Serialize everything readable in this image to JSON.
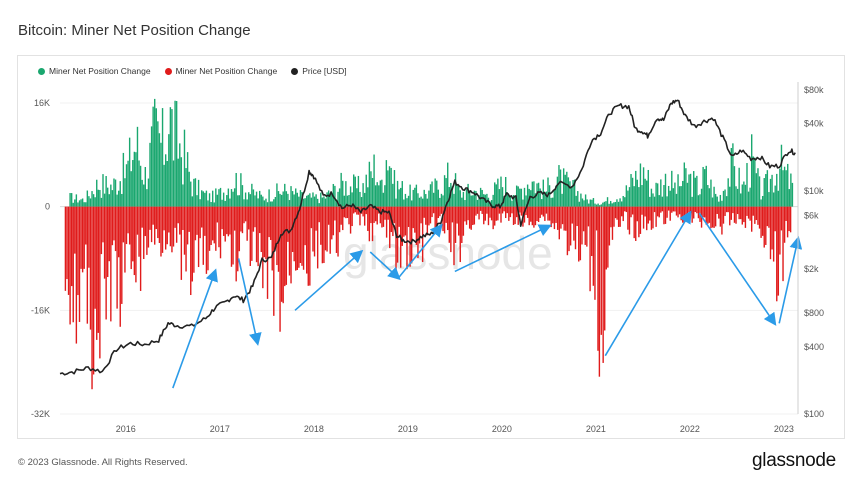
{
  "title": "Bitcoin: Miner Net Position Change",
  "footer": "© 2023 Glassnode. All Rights Reserved.",
  "brand": "glassnode",
  "watermark": "glassnode",
  "legend": [
    {
      "label": "Miner Net Position Change",
      "color": "#1aa76f"
    },
    {
      "label": "Miner Net Position Change",
      "color": "#e01b1b"
    },
    {
      "label": "Price [USD]",
      "color": "#222222"
    }
  ],
  "chart_data": {
    "type": "bar",
    "title": "Bitcoin: Miner Net Position Change",
    "x_ticks": [
      "2016",
      "2017",
      "2018",
      "2019",
      "2020",
      "2021",
      "2022",
      "2023"
    ],
    "x_range": [
      2015.3,
      2023.15
    ],
    "y_left": {
      "ticks": [
        16000,
        0,
        -16000,
        -32000
      ],
      "tick_labels": [
        "16K",
        "0",
        "-16K",
        "-32K"
      ],
      "range": [
        -32000,
        18000
      ]
    },
    "y_right": {
      "scale": "log",
      "ticks": [
        80000,
        40000,
        10000,
        6000,
        2000,
        800,
        400,
        100
      ],
      "tick_labels": [
        "$80k",
        "$40k",
        "$10k",
        "$6k",
        "$2k",
        "$800",
        "$400",
        "$100"
      ],
      "range": [
        100,
        80000
      ]
    },
    "series": [
      {
        "name": "Miner Net Position Change",
        "color": "#1aa76f",
        "points": [
          [
            2015.4,
            2000
          ],
          [
            2015.55,
            1500
          ],
          [
            2015.7,
            5000
          ],
          [
            2015.85,
            4500
          ],
          [
            2016.0,
            8000
          ],
          [
            2016.1,
            14000
          ],
          [
            2016.2,
            7000
          ],
          [
            2016.25,
            11000
          ],
          [
            2016.3,
            16000
          ],
          [
            2016.4,
            13000
          ],
          [
            2016.45,
            20000
          ],
          [
            2016.5,
            16000
          ],
          [
            2016.6,
            12000
          ],
          [
            2016.7,
            5000
          ],
          [
            2016.8,
            3000
          ],
          [
            2016.9,
            2000
          ],
          [
            2017.05,
            3500
          ],
          [
            2017.15,
            6000
          ],
          [
            2017.25,
            4000
          ],
          [
            2017.45,
            2000
          ],
          [
            2017.55,
            3000
          ],
          [
            2017.7,
            3500
          ],
          [
            2017.9,
            2000
          ],
          [
            2018.1,
            2000
          ],
          [
            2018.3,
            5000
          ],
          [
            2018.5,
            4000
          ],
          [
            2018.65,
            9000
          ],
          [
            2018.7,
            4000
          ],
          [
            2018.78,
            13000
          ],
          [
            2018.85,
            5000
          ],
          [
            2019.0,
            3000
          ],
          [
            2019.2,
            3000
          ],
          [
            2019.35,
            5000
          ],
          [
            2019.45,
            7000
          ],
          [
            2019.55,
            3000
          ],
          [
            2019.7,
            3500
          ],
          [
            2019.85,
            2500
          ],
          [
            2020.0,
            5000
          ],
          [
            2020.15,
            3000
          ],
          [
            2020.3,
            6000
          ],
          [
            2020.45,
            3500
          ],
          [
            2020.6,
            6000
          ],
          [
            2020.75,
            4000
          ],
          [
            2020.9,
            1500
          ],
          [
            2021.05,
            800
          ],
          [
            2021.3,
            3000
          ],
          [
            2021.4,
            6000
          ],
          [
            2021.5,
            8000
          ],
          [
            2021.6,
            3500
          ],
          [
            2021.75,
            6000
          ],
          [
            2021.85,
            4000
          ],
          [
            2021.95,
            6500
          ],
          [
            2022.1,
            4000
          ],
          [
            2022.15,
            7000
          ],
          [
            2022.3,
            1500
          ],
          [
            2022.45,
            9000
          ],
          [
            2022.55,
            4000
          ],
          [
            2022.65,
            10000
          ],
          [
            2022.75,
            3000
          ],
          [
            2022.95,
            9000
          ],
          [
            2023.1,
            4000
          ]
        ]
      },
      {
        "name": "Miner Net Position Change",
        "color": "#e01b1b",
        "points": [
          [
            2015.35,
            -12000
          ],
          [
            2015.45,
            -20000
          ],
          [
            2015.55,
            -18000
          ],
          [
            2015.65,
            -26000
          ],
          [
            2015.75,
            -22000
          ],
          [
            2015.85,
            -15000
          ],
          [
            2015.95,
            -18000
          ],
          [
            2016.05,
            -10000
          ],
          [
            2016.15,
            -12000
          ],
          [
            2016.25,
            -6000
          ],
          [
            2016.35,
            -8000
          ],
          [
            2016.45,
            -5000
          ],
          [
            2016.55,
            -9000
          ],
          [
            2016.65,
            -16000
          ],
          [
            2016.75,
            -10000
          ],
          [
            2016.85,
            -13000
          ],
          [
            2016.95,
            -8000
          ],
          [
            2017.05,
            -6000
          ],
          [
            2017.15,
            -11000
          ],
          [
            2017.25,
            -7000
          ],
          [
            2017.35,
            -10000
          ],
          [
            2017.45,
            -18000
          ],
          [
            2017.55,
            -14000
          ],
          [
            2017.65,
            -21000
          ],
          [
            2017.75,
            -12000
          ],
          [
            2017.85,
            -9000
          ],
          [
            2017.95,
            -13000
          ],
          [
            2018.05,
            -8000
          ],
          [
            2018.15,
            -11000
          ],
          [
            2018.25,
            -7000
          ],
          [
            2018.35,
            -4000
          ],
          [
            2018.5,
            -3000
          ],
          [
            2018.6,
            -5000
          ],
          [
            2018.7,
            -4000
          ],
          [
            2018.8,
            -6000
          ],
          [
            2018.9,
            -11000
          ],
          [
            2019.0,
            -8000
          ],
          [
            2019.1,
            -10000
          ],
          [
            2019.2,
            -5000
          ],
          [
            2019.3,
            -3000
          ],
          [
            2019.45,
            -7000
          ],
          [
            2019.5,
            -11000
          ],
          [
            2019.6,
            -4000
          ],
          [
            2019.75,
            -2500
          ],
          [
            2019.9,
            -3500
          ],
          [
            2020.05,
            -2000
          ],
          [
            2020.25,
            -3500
          ],
          [
            2020.45,
            -2000
          ],
          [
            2020.5,
            -3000
          ],
          [
            2021.0,
            -13000
          ],
          [
            2021.03,
            -27000
          ],
          [
            2021.07,
            -24000
          ],
          [
            2021.12,
            -9000
          ],
          [
            2021.3,
            -2500
          ],
          [
            2021.4,
            -5000
          ],
          [
            2021.6,
            -3000
          ],
          [
            2021.85,
            -2000
          ],
          [
            2022.15,
            -3000
          ],
          [
            2022.3,
            -4000
          ],
          [
            2022.5,
            -2500
          ],
          [
            2022.7,
            -4000
          ],
          [
            2022.8,
            -6000
          ],
          [
            2022.9,
            -11000
          ],
          [
            2022.95,
            -17000
          ],
          [
            2023.0,
            -8000
          ],
          [
            2023.08,
            -5000
          ]
        ]
      },
      {
        "name": "Price [USD]",
        "color": "#222222",
        "scale": "right-log",
        "points": [
          [
            2015.3,
            230
          ],
          [
            2015.45,
            240
          ],
          [
            2015.6,
            260
          ],
          [
            2015.75,
            240
          ],
          [
            2015.9,
            380
          ],
          [
            2016.05,
            430
          ],
          [
            2016.2,
            420
          ],
          [
            2016.35,
            460
          ],
          [
            2016.45,
            650
          ],
          [
            2016.55,
            620
          ],
          [
            2016.7,
            610
          ],
          [
            2016.85,
            720
          ],
          [
            2016.95,
            900
          ],
          [
            2017.05,
            990
          ],
          [
            2017.15,
            1150
          ],
          [
            2017.25,
            1050
          ],
          [
            2017.35,
            1400
          ],
          [
            2017.45,
            2400
          ],
          [
            2017.55,
            2500
          ],
          [
            2017.65,
            4200
          ],
          [
            2017.75,
            4400
          ],
          [
            2017.85,
            7000
          ],
          [
            2017.95,
            15000
          ],
          [
            2018.0,
            13500
          ],
          [
            2018.1,
            9000
          ],
          [
            2018.2,
            9500
          ],
          [
            2018.3,
            7000
          ],
          [
            2018.4,
            7500
          ],
          [
            2018.5,
            6400
          ],
          [
            2018.6,
            7300
          ],
          [
            2018.7,
            6500
          ],
          [
            2018.8,
            6400
          ],
          [
            2018.88,
            4000
          ],
          [
            2018.95,
            3600
          ],
          [
            2019.05,
            3500
          ],
          [
            2019.15,
            3900
          ],
          [
            2019.25,
            4100
          ],
          [
            2019.35,
            5300
          ],
          [
            2019.42,
            8000
          ],
          [
            2019.5,
            12000
          ],
          [
            2019.6,
            10500
          ],
          [
            2019.7,
            9700
          ],
          [
            2019.8,
            8300
          ],
          [
            2019.9,
            7400
          ],
          [
            2019.98,
            7200
          ],
          [
            2020.05,
            9300
          ],
          [
            2020.15,
            8600
          ],
          [
            2020.2,
            5000
          ],
          [
            2020.3,
            8800
          ],
          [
            2020.4,
            9500
          ],
          [
            2020.5,
            9200
          ],
          [
            2020.6,
            11700
          ],
          [
            2020.75,
            11000
          ],
          [
            2020.85,
            15500
          ],
          [
            2020.95,
            28000
          ],
          [
            2021.05,
            33000
          ],
          [
            2021.15,
            50000
          ],
          [
            2021.25,
            58000
          ],
          [
            2021.35,
            57000
          ],
          [
            2021.42,
            36000
          ],
          [
            2021.5,
            34000
          ],
          [
            2021.55,
            31000
          ],
          [
            2021.65,
            45000
          ],
          [
            2021.72,
            43000
          ],
          [
            2021.8,
            61000
          ],
          [
            2021.87,
            65000
          ],
          [
            2021.95,
            47000
          ],
          [
            2022.05,
            38000
          ],
          [
            2022.15,
            42000
          ],
          [
            2022.25,
            45000
          ],
          [
            2022.35,
            30000
          ],
          [
            2022.45,
            20000
          ],
          [
            2022.55,
            23000
          ],
          [
            2022.65,
            19500
          ],
          [
            2022.75,
            20000
          ],
          [
            2022.85,
            16500
          ],
          [
            2022.95,
            16800
          ],
          [
            2023.05,
            23000
          ],
          [
            2023.12,
            22000
          ]
        ]
      }
    ],
    "arrows": [
      {
        "from": [
          2016.5,
          -28000
        ],
        "to": [
          2016.95,
          -10000
        ]
      },
      {
        "from": [
          2017.2,
          -8000
        ],
        "to": [
          2017.4,
          -21000
        ]
      },
      {
        "from": [
          2017.8,
          -16000
        ],
        "to": [
          2018.5,
          -7000
        ]
      },
      {
        "from": [
          2018.6,
          -7000
        ],
        "to": [
          2018.9,
          -11000
        ]
      },
      {
        "from": [
          2018.9,
          -11000
        ],
        "to": [
          2019.35,
          -3000
        ]
      },
      {
        "from": [
          2019.5,
          -10000
        ],
        "to": [
          2020.5,
          -3000
        ]
      },
      {
        "from": [
          2021.1,
          -23000
        ],
        "to": [
          2022.0,
          -1000
        ]
      },
      {
        "from": [
          2022.1,
          -1000
        ],
        "to": [
          2022.9,
          -18000
        ]
      },
      {
        "from": [
          2022.95,
          -18000
        ],
        "to": [
          2023.15,
          -5000
        ]
      }
    ]
  }
}
